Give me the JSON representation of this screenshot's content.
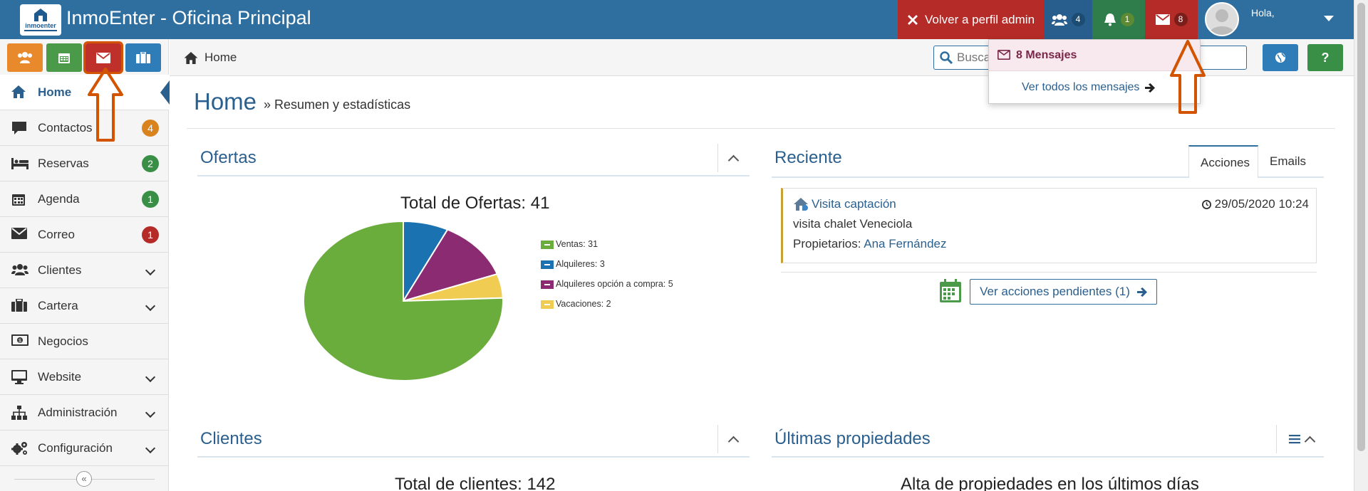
{
  "topbar": {
    "title": "InmoEnter - Oficina Principal",
    "logo_text": "inmoenter",
    "admin_button": "Volver a perfil admin",
    "users_count": "4",
    "notifications_count": "1",
    "messages_count": "8",
    "user_greeting": "Hola,"
  },
  "messages_dropdown": {
    "header": "8 Mensajes",
    "view_all": "Ver todos los mensajes"
  },
  "sidebar": {
    "items": [
      {
        "label": "Home",
        "icon": "home-icon",
        "active": true
      },
      {
        "label": "Contactos",
        "icon": "comment-icon",
        "badge": "4",
        "badge_color": "#d9831f"
      },
      {
        "label": "Reservas",
        "icon": "bed-icon",
        "badge": "2",
        "badge_color": "#3a8f47"
      },
      {
        "label": "Agenda",
        "icon": "calendar-icon",
        "badge": "1",
        "badge_color": "#3a8f47"
      },
      {
        "label": "Correo",
        "icon": "envelope-icon",
        "badge": "1",
        "badge_color": "#b52b27"
      },
      {
        "label": "Clientes",
        "icon": "users-icon",
        "expandable": true
      },
      {
        "label": "Cartera",
        "icon": "briefcase-icon",
        "expandable": true
      },
      {
        "label": "Negocios",
        "icon": "money-icon"
      },
      {
        "label": "Website",
        "icon": "desktop-icon",
        "expandable": true
      },
      {
        "label": "Administración",
        "icon": "sitemap-icon",
        "expandable": true
      },
      {
        "label": "Configuración",
        "icon": "cogs-icon",
        "expandable": true
      }
    ]
  },
  "breadcrumb": {
    "home": "Home"
  },
  "search": {
    "placeholder": "Buscar"
  },
  "page": {
    "title": "Home",
    "subtitle": "» Resumen y estadísticas"
  },
  "panels": {
    "ofertas": "Ofertas",
    "reciente": "Reciente",
    "clientes": "Clientes",
    "ultimas": "Últimas propiedades"
  },
  "reciente": {
    "tabs": [
      "Acciones",
      "Emails"
    ],
    "action": {
      "title": "Visita captación",
      "date": "29/05/2020 10:24",
      "description": "visita chalet Veneciola",
      "owner_label": "Propietarios:",
      "owner_name": "Ana Fernández"
    },
    "pending_button": "Ver acciones pendientes (1)"
  },
  "clientes_chart_title": "Total de clientes: 142",
  "ultimas_chart_title": "Alta de propiedades en los últimos días",
  "chart_data": {
    "type": "pie",
    "title": "Total de Ofertas: 41",
    "legend_position": "right",
    "slices": [
      {
        "label": "Ventas: 31",
        "value": 31,
        "color": "#6aad3d"
      },
      {
        "label": "Alquileres: 3",
        "value": 3,
        "color": "#1a73b0"
      },
      {
        "label": "Alquileres opción a compra: 5",
        "value": 5,
        "color": "#8b2c72"
      },
      {
        "label": "Vacaciones: 2",
        "value": 2,
        "color": "#f0cc52"
      }
    ]
  }
}
